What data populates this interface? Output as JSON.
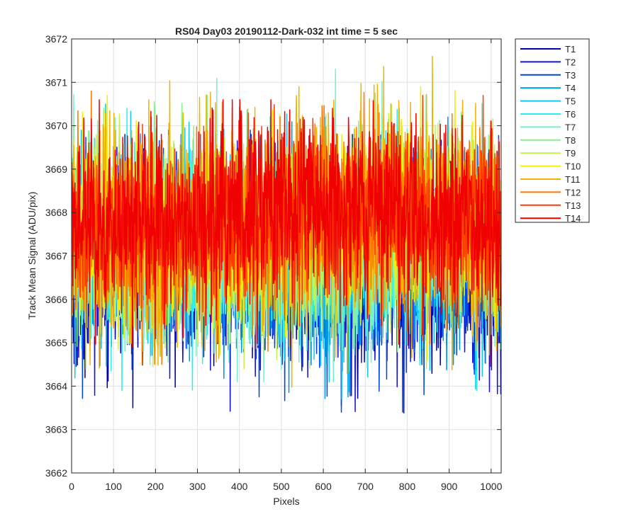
{
  "chart_data": {
    "type": "line",
    "title": "RS04 Day03 20190112-Dark-032 int time = 5 sec",
    "xlabel": "Pixels",
    "ylabel": "Track Mean Signal (ADU/pix)",
    "xlim": [
      0,
      1024
    ],
    "ylim": [
      3662,
      3672
    ],
    "xticks": [
      0,
      100,
      200,
      300,
      400,
      500,
      600,
      700,
      800,
      900,
      1000
    ],
    "yticks": [
      3662,
      3663,
      3664,
      3665,
      3666,
      3667,
      3668,
      3669,
      3670,
      3671,
      3672
    ],
    "grid": true,
    "legend_position": "outside-top-right",
    "points_per_series": 1024,
    "note_values": "Per-pixel noisy dark signal; each series summarized by its mean level and approximate min/max excursion read from the plot.",
    "series": [
      {
        "name": "T1",
        "color": "#0000a8",
        "mean": 3666.6,
        "min": 3663.5,
        "max": 3669.6
      },
      {
        "name": "T2",
        "color": "#1212d8",
        "mean": 3666.7,
        "min": 3662.6,
        "max": 3669.8
      },
      {
        "name": "T3",
        "color": "#0046e0",
        "mean": 3666.8,
        "min": 3663.4,
        "max": 3669.9
      },
      {
        "name": "T4",
        "color": "#0096e6",
        "mean": 3666.9,
        "min": 3663.6,
        "max": 3670.2
      },
      {
        "name": "T5",
        "color": "#14c8f0",
        "mean": 3667.0,
        "min": 3663.7,
        "max": 3670.5
      },
      {
        "name": "T6",
        "color": "#28f0f0",
        "mean": 3667.1,
        "min": 3663.9,
        "max": 3670.4
      },
      {
        "name": "T7",
        "color": "#78f0c8",
        "mean": 3667.2,
        "min": 3664.1,
        "max": 3671.3
      },
      {
        "name": "T8",
        "color": "#8cf08c",
        "mean": 3667.3,
        "min": 3664.2,
        "max": 3670.9
      },
      {
        "name": "T9",
        "color": "#c8f050",
        "mean": 3667.4,
        "min": 3664.4,
        "max": 3670.8
      },
      {
        "name": "T10",
        "color": "#f0f000",
        "mean": 3667.5,
        "min": 3664.6,
        "max": 3670.9
      },
      {
        "name": "T11",
        "color": "#f0b400",
        "mean": 3667.6,
        "min": 3663.9,
        "max": 3671.6
      },
      {
        "name": "T12",
        "color": "#ff7800",
        "mean": 3667.6,
        "min": 3664.5,
        "max": 3670.8
      },
      {
        "name": "T13",
        "color": "#ff3c00",
        "mean": 3667.7,
        "min": 3664.8,
        "max": 3670.7
      },
      {
        "name": "T14",
        "color": "#f00000",
        "mean": 3667.8,
        "min": 3663.9,
        "max": 3670.6
      }
    ]
  }
}
